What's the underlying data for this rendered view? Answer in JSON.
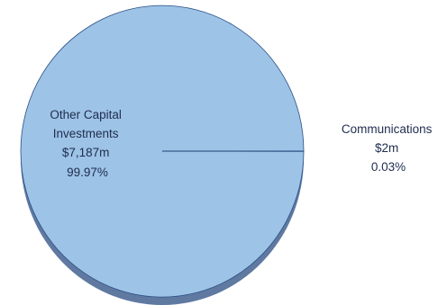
{
  "chart_data": {
    "type": "pie",
    "title": "",
    "slices": [
      {
        "label_lines": [
          "Other Capital",
          "Investments",
          "$7,187m",
          "99.97%"
        ],
        "value": 7187,
        "percent": 99.97
      },
      {
        "label_lines": [
          "Communications",
          "$2m",
          "0.03%"
        ],
        "value": 2,
        "percent": 0.03
      }
    ],
    "colors": {
      "slice": "#9dc3e6",
      "side": "#5f79a1",
      "outline": "#2b4e86"
    },
    "style": "3d-pie",
    "legend": "none"
  }
}
